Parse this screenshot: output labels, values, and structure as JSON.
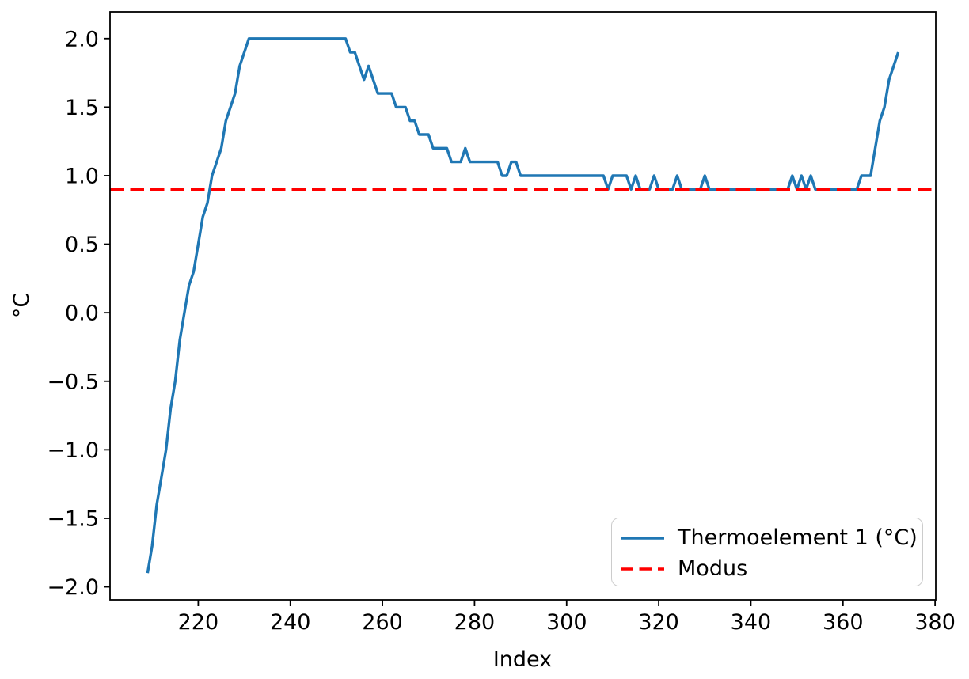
{
  "chart_data": {
    "type": "line",
    "title": "",
    "xlabel": "Index",
    "ylabel": "°C",
    "xlim": [
      200.85,
      380.15
    ],
    "ylim": [
      -2.095,
      2.195
    ],
    "grid": false,
    "legend_position": "lower right",
    "x_ticks": [
      220,
      240,
      260,
      280,
      300,
      320,
      340,
      360,
      380
    ],
    "x_tick_labels": [
      "220",
      "240",
      "260",
      "280",
      "300",
      "320",
      "340",
      "360",
      "380"
    ],
    "y_ticks": [
      2.0,
      1.5,
      1.0,
      0.5,
      0.0,
      -0.5,
      -1.0,
      -1.5,
      -2.0
    ],
    "y_tick_labels": [
      "2.0",
      "1.5",
      "1.0",
      "0.5",
      "0.0",
      "−0.5",
      "−1.0",
      "−1.5",
      "−2.0"
    ],
    "series": [
      {
        "name": "Thermoelement 1 (°C)",
        "color": "#1f77b4",
        "style": "solid",
        "line_width": 3.4,
        "x_start": 209,
        "x_step": 1,
        "values": [
          -1.9,
          -1.7,
          -1.4,
          -1.2,
          -1.0,
          -0.7,
          -0.5,
          -0.2,
          0.0,
          0.2,
          0.3,
          0.5,
          0.7,
          0.8,
          1.0,
          1.1,
          1.2,
          1.4,
          1.5,
          1.6,
          1.8,
          1.9,
          2.0,
          2.0,
          2.0,
          2.0,
          2.0,
          2.0,
          2.0,
          2.0,
          2.0,
          2.0,
          2.0,
          2.0,
          2.0,
          2.0,
          2.0,
          2.0,
          2.0,
          2.0,
          2.0,
          2.0,
          2.0,
          2.0,
          1.9,
          1.9,
          1.8,
          1.7,
          1.8,
          1.7,
          1.6,
          1.6,
          1.6,
          1.6,
          1.5,
          1.5,
          1.5,
          1.4,
          1.4,
          1.3,
          1.3,
          1.3,
          1.2,
          1.2,
          1.2,
          1.2,
          1.1,
          1.1,
          1.1,
          1.2,
          1.1,
          1.1,
          1.1,
          1.1,
          1.1,
          1.1,
          1.1,
          1.0,
          1.0,
          1.1,
          1.1,
          1.0,
          1.0,
          1.0,
          1.0,
          1.0,
          1.0,
          1.0,
          1.0,
          1.0,
          1.0,
          1.0,
          1.0,
          1.0,
          1.0,
          1.0,
          1.0,
          1.0,
          1.0,
          1.0,
          0.9,
          1.0,
          1.0,
          1.0,
          1.0,
          0.9,
          1.0,
          0.9,
          0.9,
          0.9,
          1.0,
          0.9,
          0.9,
          0.9,
          0.9,
          1.0,
          0.9,
          0.9,
          0.9,
          0.9,
          0.9,
          1.0,
          0.9,
          0.9,
          0.9,
          0.9,
          0.9,
          0.9,
          0.9,
          0.9,
          0.9,
          0.9,
          0.9,
          0.9,
          0.9,
          0.9,
          0.9,
          0.9,
          0.9,
          0.9,
          1.0,
          0.9,
          1.0,
          0.9,
          1.0,
          0.9,
          0.9,
          0.9,
          0.9,
          0.9,
          0.9,
          0.9,
          0.9,
          0.9,
          0.9,
          1.0,
          1.0,
          1.0,
          1.2,
          1.4,
          1.5,
          1.7,
          1.8,
          1.9
        ]
      },
      {
        "name": "Modus",
        "color": "#ff0000",
        "style": "dashed",
        "line_width": 3.4,
        "value": 0.9
      }
    ]
  },
  "legend": {
    "items": [
      {
        "label": "Thermoelement 1 (°C)"
      },
      {
        "label": "Modus"
      }
    ]
  }
}
